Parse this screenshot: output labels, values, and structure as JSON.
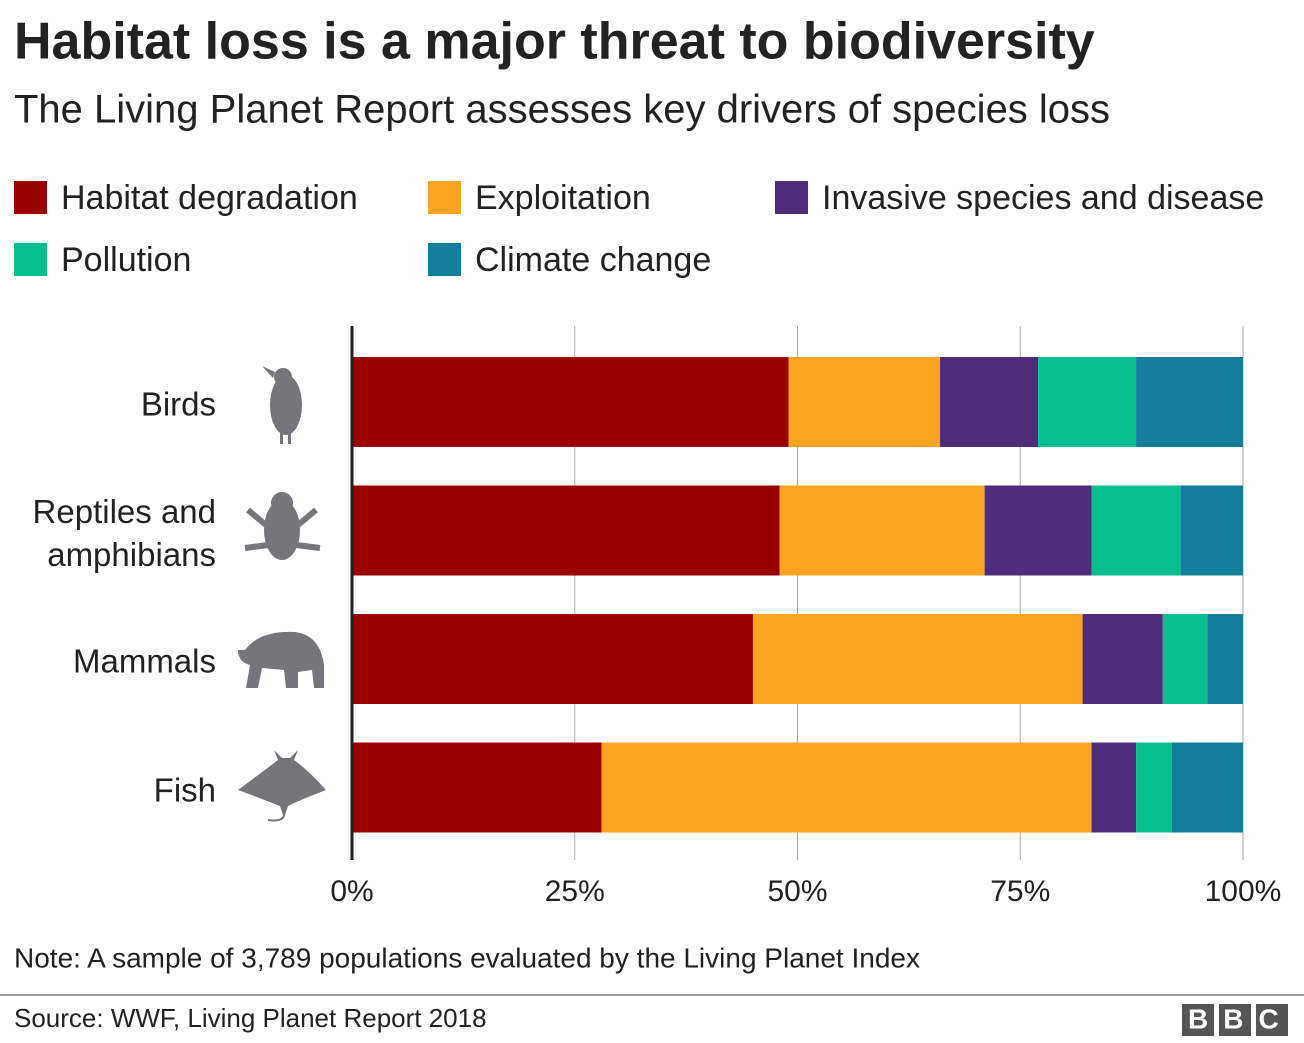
{
  "chart_data": {
    "type": "stacked-bar-horizontal",
    "title": "Habitat loss is a major threat to biodiversity",
    "subtitle": "The Living Planet Report assesses key drivers of species loss",
    "categories": [
      "Birds",
      "Reptiles and amphibians",
      "Mammals",
      "Fish"
    ],
    "series": [
      {
        "name": "Habitat degradation",
        "color": "#990000",
        "values": [
          49,
          48,
          45,
          28
        ]
      },
      {
        "name": "Exploitation",
        "color": "#fba424",
        "values": [
          17,
          23,
          37,
          55
        ]
      },
      {
        "name": "Invasive species and disease",
        "color": "#4f2d7a",
        "values": [
          11,
          12,
          9,
          5
        ]
      },
      {
        "name": "Pollution",
        "color": "#0abf8f",
        "values": [
          11,
          10,
          5,
          4
        ]
      },
      {
        "name": "Climate change",
        "color": "#137f9b",
        "values": [
          12,
          7,
          4,
          8
        ]
      }
    ],
    "xlim": [
      0,
      100
    ],
    "xticks": [
      {
        "value": 0,
        "label": "0%"
      },
      {
        "value": 25,
        "label": "25%"
      },
      {
        "value": 50,
        "label": "50%"
      },
      {
        "value": 75,
        "label": "75%"
      },
      {
        "value": 100,
        "label": "100%"
      }
    ],
    "grid": true,
    "note": "Note: A sample of 3,789 populations evaluated by the Living Planet Index",
    "source": "Source: WWF, Living Planet Report 2018",
    "logo": "BBC"
  }
}
